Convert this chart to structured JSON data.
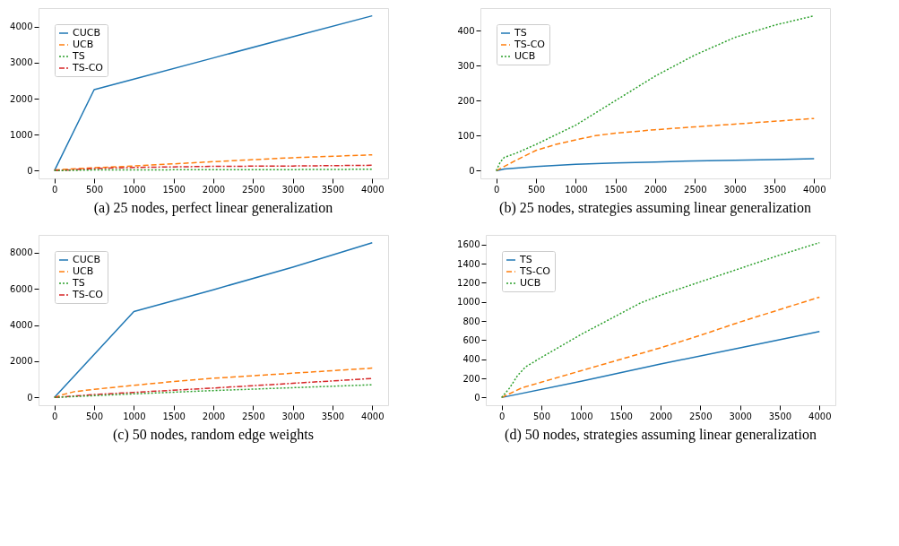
{
  "chart_data": [
    {
      "type": "line",
      "title": "(a) 25 nodes, perfect linear generalization",
      "xlim": [
        -200,
        4200
      ],
      "ylim": [
        -215,
        4515
      ],
      "xticks": [
        0,
        500,
        1000,
        1500,
        2000,
        2500,
        3000,
        3500,
        4000
      ],
      "yticks": [
        0,
        1000,
        2000,
        3000,
        4000
      ],
      "grid": false,
      "legend": "top left",
      "series": [
        {
          "name": "CUCB",
          "color": "#1f77b4",
          "line_style": "solid",
          "x": [
            0,
            500,
            1000,
            2000,
            3000,
            4000
          ],
          "values": [
            0,
            2250,
            2540,
            3130,
            3720,
            4300
          ]
        },
        {
          "name": "UCB",
          "color": "#ff7f0e",
          "line_style": "dashed",
          "x": [
            0,
            500,
            1000,
            2000,
            3000,
            4000
          ],
          "values": [
            20,
            80,
            130,
            250,
            360,
            440
          ]
        },
        {
          "name": "TS",
          "color": "#2ca02c",
          "line_style": "dotted",
          "x": [
            0,
            500,
            1000,
            2000,
            3000,
            4000
          ],
          "values": [
            0,
            20,
            20,
            30,
            30,
            40
          ]
        },
        {
          "name": "TS-CO",
          "color": "#d62728",
          "line_style": "dashdot",
          "x": [
            0,
            500,
            1000,
            2000,
            3000,
            4000
          ],
          "values": [
            0,
            60,
            90,
            120,
            130,
            150
          ]
        }
      ]
    },
    {
      "type": "line",
      "title": "(b) 25 nodes, strategies assuming linear generalization",
      "xlim": [
        -200,
        4200
      ],
      "ylim": [
        -22,
        464
      ],
      "xticks": [
        0,
        500,
        1000,
        1500,
        2000,
        2500,
        3000,
        3500,
        4000
      ],
      "yticks": [
        0,
        100,
        200,
        300,
        400
      ],
      "grid": false,
      "legend": "top left",
      "series": [
        {
          "name": "TS",
          "color": "#1f77b4",
          "line_style": "solid",
          "x": [
            0,
            100,
            500,
            1000,
            1500,
            2000,
            2500,
            3000,
            3500,
            4000
          ],
          "values": [
            0,
            5,
            12,
            18,
            22,
            25,
            28,
            30,
            32,
            34
          ]
        },
        {
          "name": "TS-CO",
          "color": "#ff7f0e",
          "line_style": "dashed",
          "x": [
            0,
            250,
            500,
            750,
            1000,
            1250,
            1500,
            2000,
            2500,
            3000,
            3500,
            4000
          ],
          "values": [
            0,
            30,
            58,
            75,
            88,
            100,
            107,
            117,
            125,
            133,
            141,
            149
          ]
        },
        {
          "name": "UCB",
          "color": "#2ca02c",
          "line_style": "dotted",
          "x": [
            0,
            50,
            100,
            250,
            500,
            1000,
            1500,
            2000,
            2500,
            3000,
            3500,
            4000
          ],
          "values": [
            0,
            25,
            38,
            50,
            75,
            130,
            200,
            270,
            330,
            380,
            415,
            442
          ]
        }
      ]
    },
    {
      "type": "line",
      "title": "(c) 50 nodes, random edge weights",
      "xlim": [
        -200,
        4200
      ],
      "ylim": [
        -430,
        8980
      ],
      "xticks": [
        0,
        500,
        1000,
        1500,
        2000,
        2500,
        3000,
        3500,
        4000
      ],
      "yticks": [
        0,
        2000,
        4000,
        6000,
        8000
      ],
      "grid": false,
      "legend": "top left",
      "series": [
        {
          "name": "CUCB",
          "color": "#1f77b4",
          "line_style": "solid",
          "x": [
            0,
            1000,
            2000,
            3000,
            4000
          ],
          "values": [
            0,
            4750,
            5950,
            7200,
            8550
          ]
        },
        {
          "name": "UCB",
          "color": "#ff7f0e",
          "line_style": "dashed",
          "x": [
            0,
            100,
            250,
            500,
            1000,
            1500,
            2000,
            2500,
            3000,
            3500,
            4000
          ],
          "values": [
            0,
            150,
            320,
            450,
            670,
            880,
            1060,
            1200,
            1340,
            1480,
            1620
          ]
        },
        {
          "name": "TS",
          "color": "#2ca02c",
          "line_style": "dotted",
          "x": [
            0,
            1000,
            2000,
            3000,
            4000
          ],
          "values": [
            0,
            200,
            380,
            540,
            700
          ]
        },
        {
          "name": "TS-CO",
          "color": "#d62728",
          "line_style": "dashdot",
          "x": [
            0,
            500,
            1000,
            2000,
            3000,
            4000
          ],
          "values": [
            0,
            160,
            280,
            520,
            780,
            1050
          ]
        }
      ]
    },
    {
      "type": "line",
      "title": "(d) 50 nodes, strategies assuming linear generalization",
      "xlim": [
        -200,
        4200
      ],
      "ylim": [
        -81,
        1701
      ],
      "xticks": [
        0,
        500,
        1000,
        1500,
        2000,
        2500,
        3000,
        3500,
        4000
      ],
      "yticks": [
        0,
        200,
        400,
        600,
        800,
        1000,
        1200,
        1400,
        1600
      ],
      "grid": false,
      "legend": "top left",
      "series": [
        {
          "name": "TS",
          "color": "#1f77b4",
          "line_style": "solid",
          "x": [
            0,
            1000,
            2000,
            3000,
            4000
          ],
          "values": [
            0,
            170,
            350,
            520,
            690
          ]
        },
        {
          "name": "TS-CO",
          "color": "#ff7f0e",
          "line_style": "dashed",
          "x": [
            0,
            250,
            500,
            1000,
            1500,
            2000,
            2500,
            3000,
            3500,
            4000
          ],
          "values": [
            0,
            100,
            160,
            280,
            400,
            520,
            650,
            790,
            920,
            1050
          ]
        },
        {
          "name": "UCB",
          "color": "#2ca02c",
          "line_style": "dotted",
          "x": [
            0,
            100,
            200,
            300,
            500,
            1000,
            1500,
            1750,
            2000,
            2500,
            3000,
            3500,
            4000
          ],
          "values": [
            0,
            100,
            230,
            320,
            420,
            660,
            880,
            990,
            1070,
            1210,
            1350,
            1490,
            1620
          ]
        }
      ]
    }
  ]
}
